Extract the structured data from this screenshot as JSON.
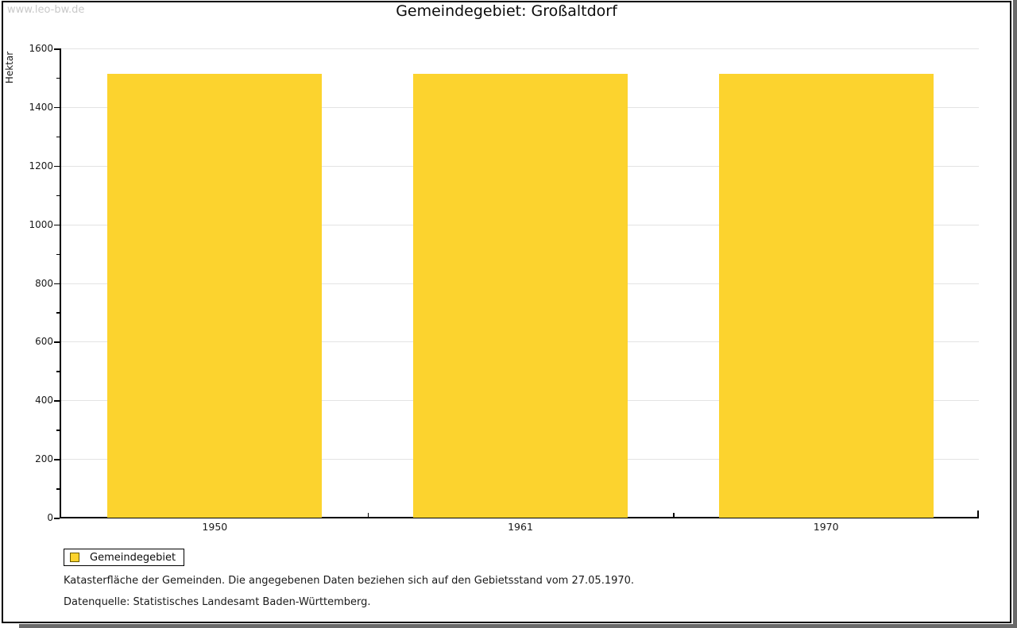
{
  "watermark": "www.leo-bw.de",
  "header": {
    "title": "Gemeindegebiet: Großaltdorf"
  },
  "chart_data": {
    "type": "bar",
    "title": "Gemeindegebiet: Großaltdorf",
    "categories": [
      "1950",
      "1961",
      "1970"
    ],
    "series": [
      {
        "name": "Gemeindegebiet",
        "values": [
          1514,
          1514,
          1514
        ]
      }
    ],
    "xlabel": "",
    "ylabel": "Hektar",
    "ylim": [
      0,
      1600
    ],
    "yticks": [
      0,
      200,
      400,
      600,
      800,
      1000,
      1200,
      1400,
      1600
    ],
    "minor_tick_step": 100,
    "grid": true,
    "bar_color": "#fcd32e",
    "legend_position": "bottom-left"
  },
  "legend": {
    "items": [
      {
        "label": "Gemeindegebiet",
        "color": "#fcd32e"
      }
    ]
  },
  "footnotes": {
    "line1": "Katasterfläche der Gemeinden. Die angegebenen Daten beziehen sich auf den Gebietsstand vom 27.05.1970.",
    "line2": "Datenquelle: Statistisches Landesamt Baden-Württemberg."
  }
}
